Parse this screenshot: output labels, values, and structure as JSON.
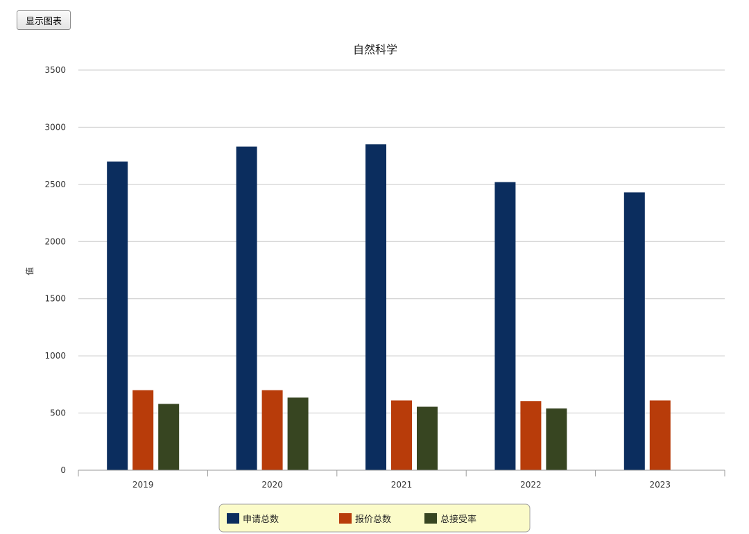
{
  "toolbar": {
    "show_chart_label": "显示图表"
  },
  "chart_data": {
    "type": "bar",
    "title": "自然科学",
    "xlabel": "",
    "ylabel": "值",
    "categories": [
      "2019",
      "2020",
      "2021",
      "2022",
      "2023"
    ],
    "series": [
      {
        "name": "申请总数",
        "color": "#0b2d5e",
        "values": [
          2700,
          2830,
          2850,
          2520,
          2430
        ]
      },
      {
        "name": "报价总数",
        "color": "#b83c0a",
        "values": [
          700,
          700,
          610,
          605,
          610
        ]
      },
      {
        "name": "总接受率",
        "color": "#374521",
        "values": [
          580,
          635,
          555,
          540,
          null
        ]
      }
    ],
    "ylim": [
      0,
      3500
    ],
    "yticks": [
      0,
      500,
      1000,
      1500,
      2000,
      2500,
      3000,
      3500
    ],
    "grid": true,
    "legend_position": "bottom"
  }
}
